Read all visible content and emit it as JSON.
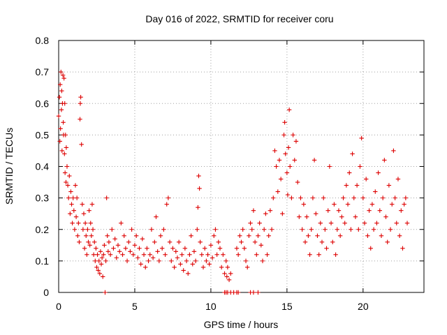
{
  "chart_data": {
    "type": "scatter",
    "title": "Day 016 of 2022, SRMTID for receiver coru",
    "xlabel": "GPS time / hours",
    "ylabel": "SRMTID / TECUs",
    "xlim": [
      0,
      24
    ],
    "ylim": [
      0,
      0.8
    ],
    "x_ticks": [
      0,
      5,
      10,
      15,
      20
    ],
    "y_ticks": [
      0,
      0.1,
      0.2,
      0.3,
      0.4,
      0.5,
      0.6,
      0.7,
      0.8
    ],
    "grid": true,
    "marker": "plus",
    "color": "#dd0000",
    "series": [
      {
        "name": "SRMTID",
        "points": [
          [
            0.0,
            0.56
          ],
          [
            0.05,
            0.62
          ],
          [
            0.08,
            0.48
          ],
          [
            0.1,
            0.66
          ],
          [
            0.12,
            0.52
          ],
          [
            0.15,
            0.7
          ],
          [
            0.18,
            0.58
          ],
          [
            0.2,
            0.64
          ],
          [
            0.22,
            0.45
          ],
          [
            0.25,
            0.6
          ],
          [
            0.28,
            0.69
          ],
          [
            0.3,
            0.54
          ],
          [
            0.32,
            0.5
          ],
          [
            0.35,
            0.68
          ],
          [
            0.38,
            0.44
          ],
          [
            0.4,
            0.6
          ],
          [
            0.42,
            0.38
          ],
          [
            0.45,
            0.5
          ],
          [
            0.48,
            0.35
          ],
          [
            0.5,
            0.46
          ],
          [
            0.55,
            0.4
          ],
          [
            0.6,
            0.34
          ],
          [
            0.65,
            0.3
          ],
          [
            0.7,
            0.37
          ],
          [
            0.75,
            0.25
          ],
          [
            0.8,
            0.32
          ],
          [
            0.85,
            0.28
          ],
          [
            0.9,
            0.22
          ],
          [
            0.95,
            0.3
          ],
          [
            1.0,
            0.26
          ],
          [
            1.05,
            0.2
          ],
          [
            1.1,
            0.34
          ],
          [
            1.15,
            0.24
          ],
          [
            1.2,
            0.3
          ],
          [
            1.25,
            0.18
          ],
          [
            1.3,
            0.22
          ],
          [
            1.35,
            0.16
          ],
          [
            1.4,
            0.55
          ],
          [
            1.42,
            0.6
          ],
          [
            1.45,
            0.62
          ],
          [
            1.5,
            0.47
          ],
          [
            1.55,
            0.28
          ],
          [
            1.6,
            0.2
          ],
          [
            1.65,
            0.25
          ],
          [
            1.7,
            0.14
          ],
          [
            1.75,
            0.22
          ],
          [
            1.8,
            0.18
          ],
          [
            1.85,
            0.12
          ],
          [
            1.9,
            0.2
          ],
          [
            1.95,
            0.16
          ],
          [
            2.0,
            0.26
          ],
          [
            2.05,
            0.15
          ],
          [
            2.1,
            0.22
          ],
          [
            2.15,
            0.18
          ],
          [
            2.2,
            0.28
          ],
          [
            2.25,
            0.2
          ],
          [
            2.3,
            0.12
          ],
          [
            2.35,
            0.16
          ],
          [
            2.4,
            0.1
          ],
          [
            2.45,
            0.14
          ],
          [
            2.5,
            0.08
          ],
          [
            2.55,
            0.12
          ],
          [
            2.6,
            0.07
          ],
          [
            2.65,
            0.1
          ],
          [
            2.7,
            0.06
          ],
          [
            2.75,
            0.13
          ],
          [
            2.8,
            0.09
          ],
          [
            2.85,
            0.11
          ],
          [
            2.9,
            0.05
          ],
          [
            2.95,
            0.12
          ],
          [
            3.0,
            0.15
          ],
          [
            3.05,
            0.0
          ],
          [
            3.1,
            0.1
          ],
          [
            3.15,
            0.3
          ],
          [
            3.2,
            0.18
          ],
          [
            3.25,
            0.13
          ],
          [
            3.3,
            0.16
          ],
          [
            3.4,
            0.12
          ],
          [
            3.5,
            0.2
          ],
          [
            3.6,
            0.14
          ],
          [
            3.7,
            0.17
          ],
          [
            3.8,
            0.11
          ],
          [
            3.9,
            0.15
          ],
          [
            4.0,
            0.13
          ],
          [
            4.1,
            0.22
          ],
          [
            4.2,
            0.12
          ],
          [
            4.3,
            0.18
          ],
          [
            4.4,
            0.14
          ],
          [
            4.5,
            0.1
          ],
          [
            4.6,
            0.16
          ],
          [
            4.7,
            0.13
          ],
          [
            4.8,
            0.2
          ],
          [
            4.9,
            0.12
          ],
          [
            5.0,
            0.15
          ],
          [
            5.1,
            0.18
          ],
          [
            5.2,
            0.11
          ],
          [
            5.3,
            0.14
          ],
          [
            5.4,
            0.09
          ],
          [
            5.5,
            0.17
          ],
          [
            5.6,
            0.12
          ],
          [
            5.7,
            0.08
          ],
          [
            5.8,
            0.14
          ],
          [
            5.9,
            0.1
          ],
          [
            6.0,
            0.12
          ],
          [
            6.1,
            0.2
          ],
          [
            6.2,
            0.11
          ],
          [
            6.3,
            0.16
          ],
          [
            6.4,
            0.24
          ],
          [
            6.5,
            0.13
          ],
          [
            6.6,
            0.1
          ],
          [
            6.7,
            0.18
          ],
          [
            6.8,
            0.14
          ],
          [
            6.9,
            0.2
          ],
          [
            7.0,
            0.12
          ],
          [
            7.1,
            0.28
          ],
          [
            7.2,
            0.3
          ],
          [
            7.3,
            0.16
          ],
          [
            7.4,
            0.1
          ],
          [
            7.5,
            0.14
          ],
          [
            7.6,
            0.08
          ],
          [
            7.7,
            0.13
          ],
          [
            7.8,
            0.11
          ],
          [
            7.9,
            0.16
          ],
          [
            8.0,
            0.09
          ],
          [
            8.1,
            0.12
          ],
          [
            8.2,
            0.07
          ],
          [
            8.3,
            0.14
          ],
          [
            8.4,
            0.1
          ],
          [
            8.5,
            0.06
          ],
          [
            8.6,
            0.12
          ],
          [
            8.7,
            0.18
          ],
          [
            8.8,
            0.09
          ],
          [
            8.9,
            0.13
          ],
          [
            9.0,
            0.1
          ],
          [
            9.1,
            0.2
          ],
          [
            9.15,
            0.27
          ],
          [
            9.2,
            0.37
          ],
          [
            9.25,
            0.33
          ],
          [
            9.3,
            0.16
          ],
          [
            9.4,
            0.12
          ],
          [
            9.5,
            0.08
          ],
          [
            9.6,
            0.14
          ],
          [
            9.7,
            0.1
          ],
          [
            9.8,
            0.12
          ],
          [
            9.9,
            0.09
          ],
          [
            10.0,
            0.15
          ],
          [
            10.1,
            0.11
          ],
          [
            10.2,
            0.18
          ],
          [
            10.3,
            0.2
          ],
          [
            10.4,
            0.12
          ],
          [
            10.5,
            0.16
          ],
          [
            10.6,
            0.14
          ],
          [
            10.7,
            0.08
          ],
          [
            10.8,
            0.12
          ],
          [
            10.9,
            0.06
          ],
          [
            11.0,
            0.1
          ],
          [
            11.05,
            0.05
          ],
          [
            11.1,
            0.08
          ],
          [
            11.2,
            0.04
          ],
          [
            11.3,
            0.06
          ],
          [
            10.9,
            0.0
          ],
          [
            11.0,
            0.0
          ],
          [
            11.1,
            0.0
          ],
          [
            11.3,
            0.0
          ],
          [
            11.5,
            0.0
          ],
          [
            11.7,
            0.0
          ],
          [
            11.8,
            0.0
          ],
          [
            12.6,
            0.0
          ],
          [
            12.8,
            0.0
          ],
          [
            13.1,
            0.0
          ],
          [
            11.7,
            0.14
          ],
          [
            11.8,
            0.12
          ],
          [
            11.9,
            0.18
          ],
          [
            12.0,
            0.16
          ],
          [
            12.1,
            0.2
          ],
          [
            12.2,
            0.14
          ],
          [
            12.3,
            0.1
          ],
          [
            12.4,
            0.08
          ],
          [
            12.5,
            0.18
          ],
          [
            12.6,
            0.22
          ],
          [
            12.7,
            0.2
          ],
          [
            12.8,
            0.26
          ],
          [
            12.9,
            0.16
          ],
          [
            13.0,
            0.12
          ],
          [
            13.1,
            0.18
          ],
          [
            13.2,
            0.22
          ],
          [
            13.3,
            0.15
          ],
          [
            13.4,
            0.1
          ],
          [
            13.5,
            0.2
          ],
          [
            13.6,
            0.25
          ],
          [
            13.7,
            0.12
          ],
          [
            13.8,
            0.18
          ],
          [
            13.9,
            0.26
          ],
          [
            14.0,
            0.2
          ],
          [
            14.1,
            0.3
          ],
          [
            14.2,
            0.45
          ],
          [
            14.3,
            0.4
          ],
          [
            14.4,
            0.32
          ],
          [
            14.5,
            0.42
          ],
          [
            14.6,
            0.36
          ],
          [
            14.7,
            0.25
          ],
          [
            14.8,
            0.5
          ],
          [
            14.85,
            0.54
          ],
          [
            14.9,
            0.44
          ],
          [
            15.0,
            0.38
          ],
          [
            15.05,
            0.31
          ],
          [
            15.1,
            0.46
          ],
          [
            15.15,
            0.58
          ],
          [
            15.2,
            0.4
          ],
          [
            15.3,
            0.3
          ],
          [
            15.4,
            0.5
          ],
          [
            15.5,
            0.42
          ],
          [
            15.6,
            0.48
          ],
          [
            15.7,
            0.35
          ],
          [
            15.8,
            0.24
          ],
          [
            15.9,
            0.3
          ],
          [
            16.0,
            0.2
          ],
          [
            16.1,
            0.28
          ],
          [
            16.2,
            0.16
          ],
          [
            16.3,
            0.24
          ],
          [
            16.4,
            0.18
          ],
          [
            16.5,
            0.12
          ],
          [
            16.6,
            0.2
          ],
          [
            16.7,
            0.3
          ],
          [
            16.8,
            0.42
          ],
          [
            16.9,
            0.25
          ],
          [
            17.0,
            0.18
          ],
          [
            17.1,
            0.12
          ],
          [
            17.2,
            0.22
          ],
          [
            17.3,
            0.16
          ],
          [
            17.4,
            0.3
          ],
          [
            17.5,
            0.2
          ],
          [
            17.6,
            0.14
          ],
          [
            17.7,
            0.26
          ],
          [
            17.8,
            0.4
          ],
          [
            17.9,
            0.22
          ],
          [
            18.0,
            0.16
          ],
          [
            18.1,
            0.28
          ],
          [
            18.2,
            0.12
          ],
          [
            18.3,
            0.2
          ],
          [
            18.4,
            0.26
          ],
          [
            18.5,
            0.18
          ],
          [
            18.6,
            0.24
          ],
          [
            18.7,
            0.3
          ],
          [
            18.8,
            0.22
          ],
          [
            18.9,
            0.34
          ],
          [
            19.0,
            0.28
          ],
          [
            19.1,
            0.38
          ],
          [
            19.2,
            0.2
          ],
          [
            19.3,
            0.44
          ],
          [
            19.4,
            0.3
          ],
          [
            19.5,
            0.24
          ],
          [
            19.6,
            0.34
          ],
          [
            19.7,
            0.2
          ],
          [
            19.8,
            0.4
          ],
          [
            19.9,
            0.49
          ],
          [
            20.0,
            0.3
          ],
          [
            20.1,
            0.22
          ],
          [
            20.2,
            0.36
          ],
          [
            20.3,
            0.18
          ],
          [
            20.4,
            0.26
          ],
          [
            20.5,
            0.14
          ],
          [
            20.6,
            0.28
          ],
          [
            20.7,
            0.2
          ],
          [
            20.8,
            0.32
          ],
          [
            20.9,
            0.22
          ],
          [
            21.0,
            0.38
          ],
          [
            21.1,
            0.26
          ],
          [
            21.2,
            0.18
          ],
          [
            21.3,
            0.3
          ],
          [
            21.4,
            0.42
          ],
          [
            21.5,
            0.24
          ],
          [
            21.6,
            0.16
          ],
          [
            21.7,
            0.34
          ],
          [
            21.8,
            0.2
          ],
          [
            21.9,
            0.28
          ],
          [
            22.0,
            0.45
          ],
          [
            22.1,
            0.3
          ],
          [
            22.2,
            0.22
          ],
          [
            22.3,
            0.36
          ],
          [
            22.4,
            0.18
          ],
          [
            22.5,
            0.26
          ],
          [
            22.6,
            0.14
          ],
          [
            22.7,
            0.28
          ],
          [
            22.8,
            0.3
          ],
          [
            22.9,
            0.22
          ]
        ]
      }
    ]
  }
}
